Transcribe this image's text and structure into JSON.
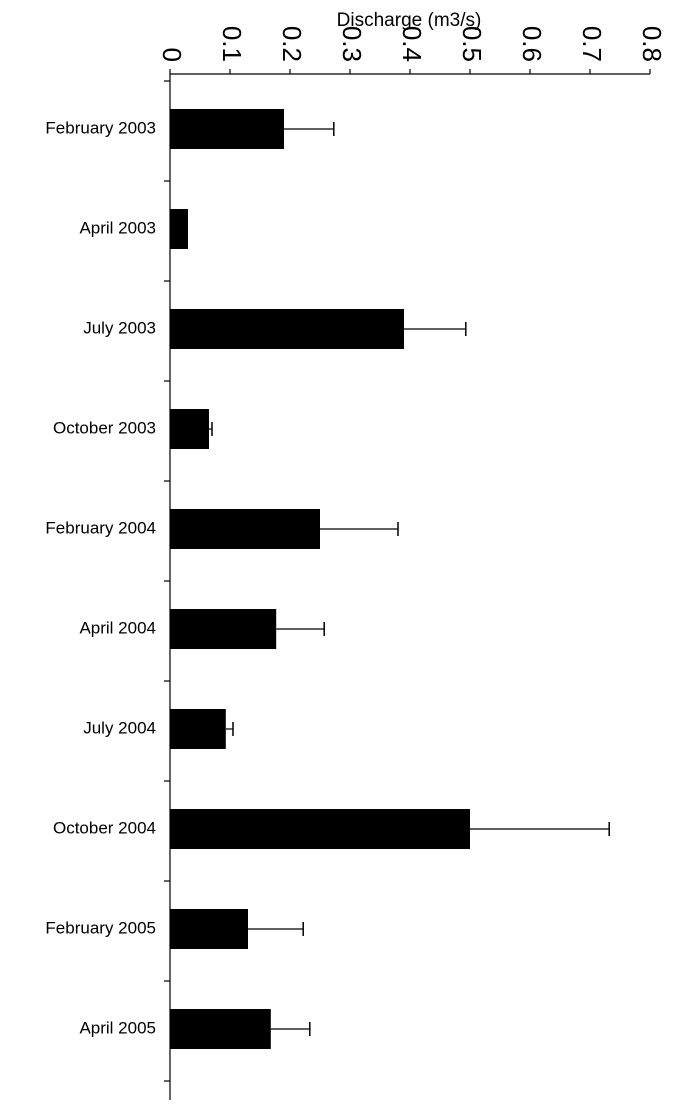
{
  "chart_data": {
    "type": "bar",
    "orientation": "horizontal",
    "xlabel": "Discharge (m3/s)",
    "xlim": [
      0,
      0.8
    ],
    "ticks": [
      0,
      0.1,
      0.2,
      0.3,
      0.4,
      0.5,
      0.6,
      0.7,
      0.8
    ],
    "tick_labels": [
      "0",
      "0.1",
      "0.2",
      "0.3",
      "0.4",
      "0.5",
      "0.6",
      "0.7",
      "0.8"
    ],
    "categories": [
      "February 2003",
      "April 2003",
      "July 2003",
      "October 2003",
      "February 2004",
      "April 2004",
      "July 2004",
      "October 2004",
      "February 2005",
      "April 2005"
    ],
    "values": [
      0.19,
      0.03,
      0.39,
      0.065,
      0.25,
      0.177,
      0.093,
      0.5,
      0.13,
      0.168
    ],
    "error_upper": [
      0.083,
      0.0,
      0.103,
      0.005,
      0.13,
      0.08,
      0.012,
      0.232,
      0.092,
      0.065
    ],
    "bar_color": "#000000",
    "grid": false,
    "legend": "none"
  }
}
